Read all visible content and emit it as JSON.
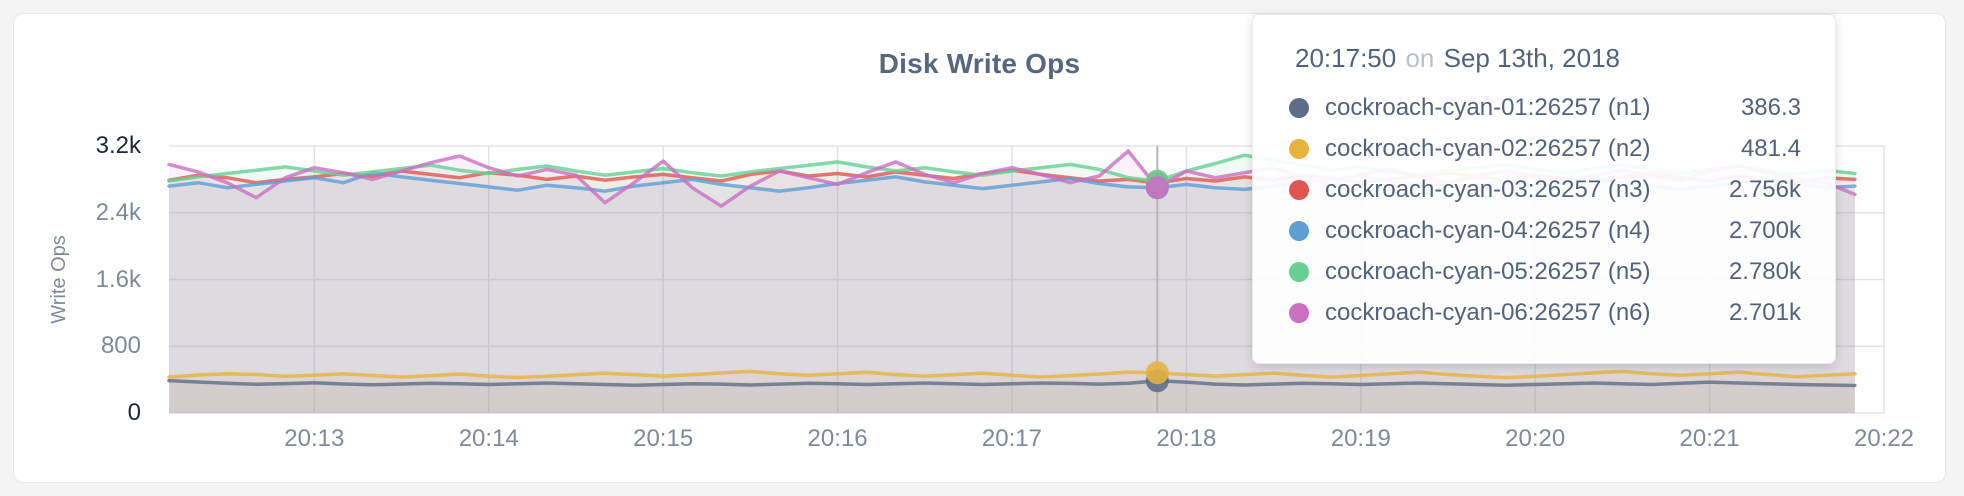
{
  "page": {
    "background": "#f4f4f5"
  },
  "chart_data": {
    "type": "line",
    "title": "Disk Write Ops",
    "xlabel": "",
    "ylabel": "Write Ops",
    "ylim": [
      0,
      3200
    ],
    "grid": true,
    "legend_position": "none",
    "x_axis_end_index": 59,
    "y_ticks": [
      {
        "label": "0",
        "value": 0,
        "emphasis": true,
        "gridline": false
      },
      {
        "label": "800",
        "value": 800,
        "emphasis": false,
        "gridline": true
      },
      {
        "label": "1.6k",
        "value": 1600,
        "emphasis": false,
        "gridline": true
      },
      {
        "label": "2.4k",
        "value": 2400,
        "emphasis": false,
        "gridline": true
      },
      {
        "label": "3.2k",
        "value": 3200,
        "emphasis": true,
        "gridline": true
      }
    ],
    "x_ticks": [
      {
        "label": "20:13",
        "index": 5
      },
      {
        "label": "20:14",
        "index": 11
      },
      {
        "label": "20:15",
        "index": 17
      },
      {
        "label": "20:16",
        "index": 23
      },
      {
        "label": "20:17",
        "index": 29
      },
      {
        "label": "20:18",
        "index": 35
      },
      {
        "label": "20:19",
        "index": 41
      },
      {
        "label": "20:20",
        "index": 47
      },
      {
        "label": "20:21",
        "index": 53
      },
      {
        "label": "20:22",
        "index": 59
      }
    ],
    "times": [
      "20:12:10",
      "20:12:20",
      "20:12:30",
      "20:12:40",
      "20:12:50",
      "20:13:00",
      "20:13:10",
      "20:13:20",
      "20:13:30",
      "20:13:40",
      "20:13:50",
      "20:14:00",
      "20:14:10",
      "20:14:20",
      "20:14:30",
      "20:14:40",
      "20:14:50",
      "20:15:00",
      "20:15:10",
      "20:15:20",
      "20:15:30",
      "20:15:40",
      "20:15:50",
      "20:16:00",
      "20:16:10",
      "20:16:20",
      "20:16:30",
      "20:16:40",
      "20:16:50",
      "20:17:00",
      "20:17:10",
      "20:17:20",
      "20:17:30",
      "20:17:40",
      "20:17:50",
      "20:18:00",
      "20:18:10",
      "20:18:20",
      "20:18:30",
      "20:18:40",
      "20:18:50",
      "20:19:00",
      "20:19:10",
      "20:19:20",
      "20:19:30",
      "20:19:40",
      "20:19:50",
      "20:20:00",
      "20:20:10",
      "20:20:20",
      "20:20:30",
      "20:20:40",
      "20:20:50",
      "20:21:00",
      "20:21:10",
      "20:21:20",
      "20:21:30",
      "20:21:40",
      "20:21:50"
    ],
    "series": [
      {
        "name": "cockroach-cyan-01:26257 (n1)",
        "color": "#5f6c87",
        "values": [
          388,
          372,
          356,
          344,
          352,
          362,
          348,
          338,
          347,
          356,
          350,
          342,
          351,
          360,
          351,
          342,
          332,
          342,
          351,
          346,
          336,
          346,
          356,
          351,
          342,
          351,
          360,
          351,
          342,
          351,
          360,
          355,
          346,
          356,
          386.3,
          370,
          346,
          336,
          346,
          356,
          351,
          342,
          351,
          360,
          351,
          342,
          332,
          342,
          351,
          360,
          351,
          342,
          356,
          370,
          360,
          351,
          342,
          336,
          330
        ]
      },
      {
        "name": "cockroach-cyan-02:26257 (n2)",
        "color": "#e7b33d",
        "values": [
          432,
          455,
          470,
          462,
          440,
          452,
          470,
          450,
          432,
          448,
          468,
          442,
          425,
          440,
          460,
          478,
          460,
          442,
          460,
          480,
          498,
          470,
          452,
          470,
          488,
          462,
          442,
          460,
          478,
          452,
          432,
          450,
          468,
          490,
          481.4,
          462,
          442,
          460,
          478,
          452,
          432,
          450,
          470,
          490,
          462,
          442,
          424,
          440,
          460,
          480,
          498,
          470,
          452,
          470,
          490,
          462,
          434,
          452,
          470
        ]
      },
      {
        "name": "cockroach-cyan-03:26257 (n3)",
        "color": "#e0564f",
        "values": [
          2790,
          2850,
          2820,
          2760,
          2800,
          2830,
          2870,
          2840,
          2900,
          2860,
          2820,
          2880,
          2850,
          2800,
          2840,
          2790,
          2830,
          2860,
          2820,
          2780,
          2860,
          2900,
          2840,
          2870,
          2830,
          2890,
          2850,
          2810,
          2870,
          2910,
          2860,
          2820,
          2780,
          2800,
          2756,
          2810,
          2780,
          2830,
          2790,
          2850,
          2820,
          2760,
          2800,
          2840,
          2880,
          2830,
          2790,
          2850,
          2810,
          2770,
          2830,
          2870,
          2820,
          2780,
          2840,
          2800,
          2760,
          2820,
          2800
        ]
      },
      {
        "name": "cockroach-cyan-04:26257 (n4)",
        "color": "#5f9ed5",
        "values": [
          2720,
          2760,
          2700,
          2740,
          2780,
          2820,
          2760,
          2880,
          2830,
          2790,
          2750,
          2710,
          2670,
          2730,
          2700,
          2660,
          2720,
          2760,
          2800,
          2740,
          2700,
          2660,
          2700,
          2750,
          2790,
          2830,
          2770,
          2730,
          2690,
          2730,
          2770,
          2810,
          2750,
          2710,
          2700,
          2740,
          2700,
          2680,
          2720,
          2760,
          2800,
          2840,
          2780,
          2740,
          2700,
          2740,
          2780,
          2720,
          2760,
          2800,
          2760,
          2720,
          2680,
          2720,
          2760,
          2800,
          2740,
          2700,
          2720
        ]
      },
      {
        "name": "cockroach-cyan-05:26257 (n5)",
        "color": "#67cf93",
        "values": [
          2780,
          2830,
          2870,
          2910,
          2950,
          2900,
          2850,
          2890,
          2930,
          2970,
          2910,
          2870,
          2920,
          2960,
          2900,
          2850,
          2890,
          2930,
          2880,
          2840,
          2890,
          2930,
          2970,
          3010,
          2950,
          2900,
          2940,
          2890,
          2850,
          2900,
          2940,
          2980,
          2920,
          2820,
          2780,
          2900,
          2990,
          3090,
          3030,
          2970,
          2910,
          2950,
          2890,
          2850,
          2900,
          2940,
          2980,
          2920,
          2880,
          2930,
          2970,
          2910,
          2870,
          2920,
          2960,
          2900,
          2860,
          2910,
          2870
        ]
      },
      {
        "name": "cockroach-cyan-06:26257 (n6)",
        "color": "#cb6fc3",
        "values": [
          2980,
          2890,
          2760,
          2580,
          2820,
          2940,
          2880,
          2800,
          2900,
          3000,
          3080,
          2940,
          2840,
          2920,
          2850,
          2520,
          2760,
          3020,
          2700,
          2480,
          2720,
          2900,
          2820,
          2740,
          2880,
          3010,
          2860,
          2760,
          2870,
          2940,
          2860,
          2760,
          2840,
          3140,
          2701,
          2900,
          2820,
          2880,
          2940,
          2820,
          2740,
          2860,
          2920,
          2840,
          2760,
          2840,
          2900,
          2830,
          2770,
          2850,
          2910,
          2840,
          2780,
          2900,
          2960,
          2880,
          2800,
          2760,
          2620
        ]
      }
    ],
    "hover": {
      "index": 34,
      "time": "20:17:50",
      "values": [
        386.3,
        481.4,
        2756,
        2700,
        2780,
        2701
      ],
      "guideline_color": "#b6b6b6"
    },
    "style": {
      "line_width": 3.5,
      "line_opacity": 0.8,
      "area_opacity": 0.09,
      "grid_color": "#e2e3e5",
      "dot_radius": 11.5
    }
  },
  "tooltip": {
    "time": "20:17:50",
    "conjunction": "on",
    "date": "Sep 13th, 2018",
    "series": [
      {
        "name": "cockroach-cyan-01:26257 (n1)",
        "value": "386.3",
        "color": "#5f6c87"
      },
      {
        "name": "cockroach-cyan-02:26257 (n2)",
        "value": "481.4",
        "color": "#e7b33d"
      },
      {
        "name": "cockroach-cyan-03:26257 (n3)",
        "value": "2.756k",
        "color": "#e0564f"
      },
      {
        "name": "cockroach-cyan-04:26257 (n4)",
        "value": "2.700k",
        "color": "#5f9ed5"
      },
      {
        "name": "cockroach-cyan-05:26257 (n5)",
        "value": "2.780k",
        "color": "#67cf93"
      },
      {
        "name": "cockroach-cyan-06:26257 (n6)",
        "value": "2.701k",
        "color": "#cb6fc3"
      }
    ]
  }
}
